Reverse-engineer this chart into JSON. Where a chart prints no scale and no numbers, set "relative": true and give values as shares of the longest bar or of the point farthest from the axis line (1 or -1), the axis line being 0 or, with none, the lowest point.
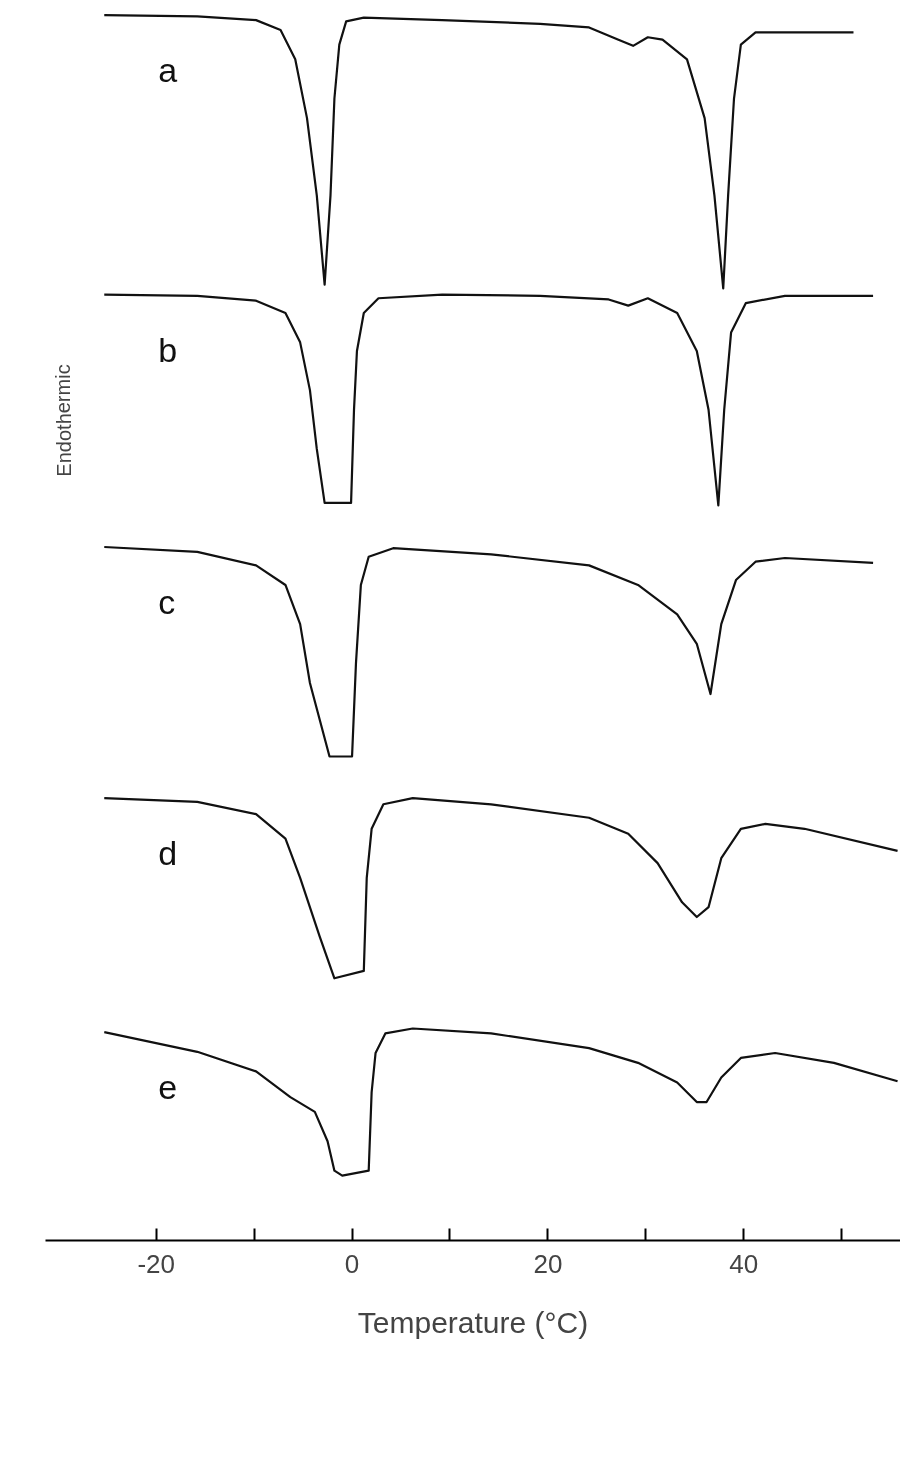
{
  "chart_data": {
    "type": "line",
    "relative": true,
    "xlabel": "Temperature (°C)",
    "ylabel": "Endothermic",
    "xlim": [
      -31.3,
      56
    ],
    "xticks": [
      -20,
      {
        "value": -10,
        "label": null
      },
      0,
      {
        "value": 10,
        "label": null
      },
      20,
      {
        "value": 30,
        "label": null
      },
      40,
      {
        "value": 50,
        "label": null
      }
    ],
    "grid": false,
    "marker": "none",
    "line_style": "solid",
    "tick_labels": "x",
    "series": [
      {
        "name": "a",
        "color": "#111111",
        "x": [
          -25.3,
          -15.8,
          -9.8,
          -7.3,
          -5.8,
          -4.6,
          -3.6,
          -2.8,
          -2.2,
          -1.8,
          -1.3,
          -0.6,
          1.2,
          9.2,
          19.2,
          24.2,
          27.2,
          28.7,
          30.2,
          31.7,
          34.2,
          36,
          37,
          37.9,
          38.4,
          39,
          39.7,
          41.2,
          44.2,
          51.2
        ],
        "values": [
          1.0,
          0.999,
          0.996,
          0.988,
          0.964,
          0.916,
          0.853,
          0.78,
          0.853,
          0.932,
          0.976,
          0.995,
          0.998,
          0.996,
          0.993,
          0.99,
          0.98,
          0.975,
          0.982,
          0.98,
          0.964,
          0.916,
          0.853,
          0.777,
          0.853,
          0.932,
          0.976,
          0.986,
          0.986,
          0.986
        ]
      },
      {
        "name": "b",
        "color": "#111111",
        "x": [
          -25.3,
          -15.8,
          -9.8,
          -6.8,
          -5.3,
          -4.3,
          -3.6,
          -2.8,
          -0.1,
          0.2,
          0.5,
          1.2,
          2.7,
          9.2,
          19.2,
          26.2,
          28.2,
          30.2,
          33.2,
          35.2,
          36.4,
          37.4,
          38,
          38.7,
          40.2,
          44.2,
          53.2
        ],
        "values": [
          0.772,
          0.771,
          0.767,
          0.757,
          0.733,
          0.694,
          0.646,
          0.602,
          0.602,
          0.678,
          0.726,
          0.757,
          0.769,
          0.772,
          0.771,
          0.768,
          0.763,
          0.769,
          0.757,
          0.726,
          0.678,
          0.6,
          0.678,
          0.741,
          0.765,
          0.771,
          0.771
        ]
      },
      {
        "name": "c",
        "color": "#111111",
        "x": [
          -25.3,
          -15.8,
          -9.8,
          -6.8,
          -5.3,
          -4.3,
          -2.3,
          0.0,
          0.4,
          0.9,
          1.7,
          4.2,
          14.2,
          24.2,
          29.2,
          33.2,
          35.2,
          36.6,
          37.7,
          39.2,
          41.2,
          44.2,
          53.2
        ],
        "values": [
          0.566,
          0.562,
          0.551,
          0.535,
          0.503,
          0.455,
          0.395,
          0.395,
          0.471,
          0.535,
          0.558,
          0.565,
          0.56,
          0.551,
          0.535,
          0.511,
          0.487,
          0.446,
          0.503,
          0.539,
          0.554,
          0.557,
          0.553
        ]
      },
      {
        "name": "d",
        "color": "#111111",
        "x": [
          -25.3,
          -15.8,
          -9.8,
          -6.8,
          -5.3,
          -3.3,
          -1.8,
          1.2,
          1.5,
          2.0,
          3.2,
          6.2,
          14.2,
          24.2,
          28.2,
          31.2,
          33.7,
          35.2,
          36.4,
          37.7,
          39.7,
          42.2,
          46.2,
          55.7
        ],
        "values": [
          0.361,
          0.358,
          0.348,
          0.328,
          0.296,
          0.248,
          0.214,
          0.22,
          0.296,
          0.336,
          0.356,
          0.361,
          0.356,
          0.345,
          0.332,
          0.308,
          0.276,
          0.264,
          0.272,
          0.312,
          0.336,
          0.34,
          0.336,
          0.318
        ]
      },
      {
        "name": "e",
        "color": "#111111",
        "x": [
          -25.3,
          -15.8,
          -9.8,
          -6.3,
          -3.8,
          -2.5,
          -1.8,
          -1.0,
          1.7,
          2.0,
          2.4,
          3.4,
          6.2,
          14.2,
          24.2,
          29.2,
          33.2,
          35.2,
          36.2,
          37.7,
          39.7,
          43.2,
          49.2,
          55.7
        ],
        "values": [
          0.17,
          0.154,
          0.138,
          0.117,
          0.105,
          0.081,
          0.057,
          0.053,
          0.057,
          0.121,
          0.153,
          0.169,
          0.173,
          0.169,
          0.157,
          0.145,
          0.129,
          0.113,
          0.113,
          0.133,
          0.149,
          0.153,
          0.145,
          0.13
        ]
      }
    ]
  }
}
